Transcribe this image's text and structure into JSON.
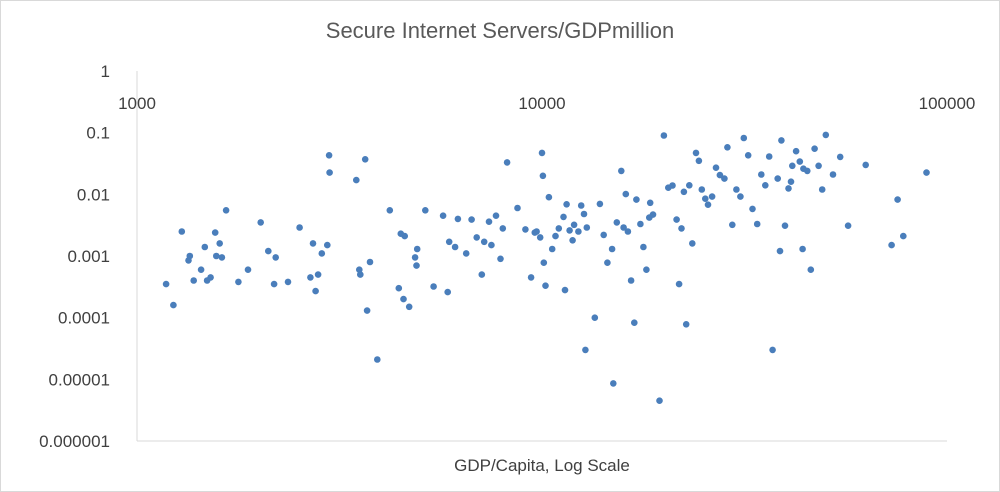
{
  "chart_data": {
    "type": "scatter",
    "title": "Secure Internet Servers/GDPmillion",
    "xlabel": "GDP/Capita, Log Scale",
    "ylabel": "",
    "x_scale": "log",
    "y_scale": "log",
    "xlim": [
      1000,
      100000
    ],
    "ylim": [
      1e-06,
      1
    ],
    "x_ticks": [
      "1000",
      "10000",
      "100000"
    ],
    "y_ticks": [
      "1",
      "0.1",
      "0.01",
      "0.001",
      "0.0001",
      "0.00001",
      "0.000001"
    ],
    "grid": false,
    "legend": "none",
    "marker_color": "#4a7ebb",
    "points": [
      [
        1180,
        0.00035
      ],
      [
        1230,
        0.00016
      ],
      [
        1290,
        0.0025
      ],
      [
        1340,
        0.00085
      ],
      [
        1350,
        0.001
      ],
      [
        1380,
        0.0004
      ],
      [
        1440,
        0.0006
      ],
      [
        1470,
        0.0014
      ],
      [
        1490,
        0.0004
      ],
      [
        1520,
        0.00045
      ],
      [
        1560,
        0.0024
      ],
      [
        1570,
        0.001
      ],
      [
        1600,
        0.0016
      ],
      [
        1620,
        0.00095
      ],
      [
        1660,
        0.0055
      ],
      [
        1780,
        0.00038
      ],
      [
        1880,
        0.0006
      ],
      [
        2020,
        0.0035
      ],
      [
        2110,
        0.0012
      ],
      [
        2180,
        0.00035
      ],
      [
        2200,
        0.00095
      ],
      [
        2360,
        0.00038
      ],
      [
        2520,
        0.0029
      ],
      [
        2680,
        0.00045
      ],
      [
        2720,
        0.0016
      ],
      [
        2800,
        0.0005
      ],
      [
        2860,
        0.0011
      ],
      [
        2950,
        0.0015
      ],
      [
        2760,
        0.00027
      ],
      [
        2980,
        0.043
      ],
      [
        2990,
        0.0225
      ],
      [
        3480,
        0.017
      ],
      [
        3540,
        0.0006
      ],
      [
        3560,
        0.0005
      ],
      [
        3660,
        0.037
      ],
      [
        3700,
        0.00013
      ],
      [
        3760,
        0.0008
      ],
      [
        3920,
        2.1e-05
      ],
      [
        4210,
        0.0055
      ],
      [
        4430,
        0.0003
      ],
      [
        4480,
        0.0023
      ],
      [
        4580,
        0.0021
      ],
      [
        4550,
        0.0002
      ],
      [
        4700,
        0.00015
      ],
      [
        4860,
        0.00095
      ],
      [
        4900,
        0.0007
      ],
      [
        4920,
        0.0013
      ],
      [
        5150,
        0.0055
      ],
      [
        5400,
        0.00032
      ],
      [
        5700,
        0.0045
      ],
      [
        5850,
        0.00026
      ],
      [
        5900,
        0.0017
      ],
      [
        6100,
        0.0014
      ],
      [
        6200,
        0.004
      ],
      [
        6500,
        0.0011
      ],
      [
        6700,
        0.0039
      ],
      [
        6900,
        0.002
      ],
      [
        7100,
        0.0005
      ],
      [
        7200,
        0.0017
      ],
      [
        7400,
        0.0036
      ],
      [
        7500,
        0.0015
      ],
      [
        7700,
        0.0045
      ],
      [
        7900,
        0.0009
      ],
      [
        8000,
        0.0028
      ],
      [
        8200,
        0.033
      ],
      [
        8700,
        0.006
      ],
      [
        9100,
        0.0027
      ],
      [
        9400,
        0.00045
      ],
      [
        9600,
        0.0024
      ],
      [
        9700,
        0.0025
      ],
      [
        9900,
        0.002
      ],
      [
        10000,
        0.047
      ],
      [
        10050,
        0.02
      ],
      [
        10100,
        0.00078
      ],
      [
        10200,
        0.00033
      ],
      [
        10400,
        0.009
      ],
      [
        10600,
        0.0013
      ],
      [
        10800,
        0.0021
      ],
      [
        11000,
        0.0028
      ],
      [
        11300,
        0.0043
      ],
      [
        11500,
        0.0069
      ],
      [
        11400,
        0.00028
      ],
      [
        11700,
        0.0026
      ],
      [
        11900,
        0.0018
      ],
      [
        12000,
        0.0032
      ],
      [
        12300,
        0.0025
      ],
      [
        12500,
        0.0066
      ],
      [
        12700,
        0.0048
      ],
      [
        12900,
        0.0029
      ],
      [
        12800,
        3e-05
      ],
      [
        13500,
        0.0001
      ],
      [
        13900,
        0.007
      ],
      [
        14200,
        0.0022
      ],
      [
        14500,
        0.00078
      ],
      [
        14900,
        0.0013
      ],
      [
        15000,
        8.6e-06
      ],
      [
        15300,
        0.0035
      ],
      [
        15700,
        0.024
      ],
      [
        15900,
        0.0029
      ],
      [
        16100,
        0.0101
      ],
      [
        16300,
        0.0025
      ],
      [
        16600,
        0.0004
      ],
      [
        16900,
        8.3e-05
      ],
      [
        17100,
        0.0082
      ],
      [
        17500,
        0.0033
      ],
      [
        17800,
        0.0014
      ],
      [
        18100,
        0.0006
      ],
      [
        18500,
        0.0073
      ],
      [
        18400,
        0.0042
      ],
      [
        18800,
        0.0047
      ],
      [
        19500,
        4.5e-06
      ],
      [
        20000,
        0.09
      ],
      [
        20500,
        0.0128
      ],
      [
        21000,
        0.0139
      ],
      [
        21500,
        0.0039
      ],
      [
        21800,
        0.00035
      ],
      [
        22100,
        0.0028
      ],
      [
        22400,
        0.011
      ],
      [
        22700,
        7.8e-05
      ],
      [
        23100,
        0.014
      ],
      [
        23500,
        0.0016
      ],
      [
        24000,
        0.047
      ],
      [
        24400,
        0.035
      ],
      [
        24800,
        0.012
      ],
      [
        25300,
        0.0085
      ],
      [
        25700,
        0.0068
      ],
      [
        26300,
        0.0092
      ],
      [
        26900,
        0.027
      ],
      [
        27500,
        0.0205
      ],
      [
        28200,
        0.018
      ],
      [
        28700,
        0.058
      ],
      [
        29500,
        0.0032
      ],
      [
        30200,
        0.012
      ],
      [
        30900,
        0.0092
      ],
      [
        31500,
        0.082
      ],
      [
        32300,
        0.043
      ],
      [
        33100,
        0.0058
      ],
      [
        34000,
        0.0033
      ],
      [
        34800,
        0.021
      ],
      [
        35600,
        0.014
      ],
      [
        36400,
        0.041
      ],
      [
        37100,
        3e-05
      ],
      [
        38200,
        0.018
      ],
      [
        39000,
        0.075
      ],
      [
        39800,
        0.0031
      ],
      [
        40600,
        0.0125
      ],
      [
        41500,
        0.029
      ],
      [
        42400,
        0.05
      ],
      [
        43300,
        0.034
      ],
      [
        44200,
        0.026
      ],
      [
        45200,
        0.024
      ],
      [
        46100,
        0.0006
      ],
      [
        47100,
        0.055
      ],
      [
        48200,
        0.029
      ],
      [
        49200,
        0.012
      ],
      [
        50200,
        0.092
      ],
      [
        52300,
        0.021
      ],
      [
        54500,
        0.0405
      ],
      [
        57000,
        0.0031
      ],
      [
        63000,
        0.03
      ],
      [
        73000,
        0.0015
      ],
      [
        75500,
        0.0082
      ],
      [
        78000,
        0.0021
      ],
      [
        89000,
        0.0225
      ],
      [
        44000,
        0.0013
      ],
      [
        41200,
        0.016
      ],
      [
        38700,
        0.0012
      ]
    ]
  }
}
